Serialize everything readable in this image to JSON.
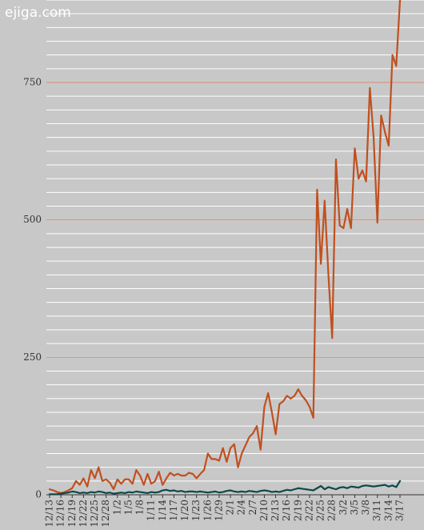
{
  "watermark": "ejiga.com",
  "chart_data": {
    "type": "line",
    "categories": [
      "12/13",
      null,
      null,
      "12/16",
      null,
      null,
      "12/19",
      null,
      null,
      "12/22",
      null,
      null,
      "12/25",
      null,
      null,
      "12/28",
      null,
      null,
      "1/2",
      null,
      null,
      "1/5",
      null,
      null,
      "1/8",
      null,
      null,
      "1/11",
      null,
      null,
      "1/14",
      null,
      null,
      "1/17",
      null,
      null,
      "1/20",
      null,
      null,
      "1/23",
      null,
      null,
      "1/26",
      null,
      null,
      "1/29",
      null,
      null,
      "2/1",
      null,
      null,
      "2/4",
      null,
      null,
      "2/7",
      null,
      null,
      "2/10",
      null,
      null,
      "2/13",
      null,
      null,
      "2/16",
      null,
      null,
      "2/19",
      null,
      null,
      "2/22",
      null,
      null,
      "2/25",
      null,
      null,
      "2/28",
      null,
      null,
      "3/2",
      null,
      null,
      "3/5",
      null,
      null,
      "3/8",
      null,
      null,
      "3/11",
      null,
      null,
      "3/14",
      null,
      null,
      "3/17"
    ],
    "series": [
      {
        "color": "#c0501f",
        "values": [
          10,
          8,
          5,
          3,
          5,
          8,
          12,
          25,
          18,
          30,
          15,
          45,
          30,
          50,
          25,
          28,
          22,
          10,
          28,
          20,
          28,
          28,
          20,
          45,
          35,
          18,
          38,
          20,
          25,
          42,
          18,
          30,
          40,
          35,
          38,
          35,
          35,
          40,
          38,
          30,
          38,
          45,
          75,
          65,
          65,
          62,
          85,
          60,
          85,
          92,
          50,
          75,
          90,
          105,
          112,
          125,
          82,
          160,
          185,
          150,
          110,
          165,
          170,
          180,
          175,
          180,
          192,
          180,
          172,
          160,
          140,
          555,
          420,
          535,
          400,
          285,
          610,
          490,
          485,
          520,
          485,
          630,
          575,
          590,
          570,
          740,
          650,
          495,
          690,
          660,
          635,
          800,
          780,
          900
        ]
      },
      {
        "color": "#0d4a4a",
        "values": [
          1,
          1,
          1,
          2,
          3,
          4,
          6,
          5,
          3,
          4,
          3,
          5,
          4,
          6,
          5,
          3,
          4,
          2,
          3,
          4,
          3,
          5,
          4,
          6,
          5,
          4,
          3,
          5,
          4,
          5,
          8,
          9,
          7,
          8,
          6,
          7,
          5,
          6,
          6,
          5,
          6,
          5,
          4,
          5,
          6,
          4,
          5,
          7,
          8,
          6,
          5,
          6,
          5,
          7,
          6,
          5,
          7,
          8,
          7,
          5,
          6,
          5,
          7,
          9,
          8,
          10,
          12,
          11,
          10,
          9,
          8,
          12,
          16,
          10,
          14,
          12,
          10,
          13,
          14,
          12,
          15,
          14,
          13,
          16,
          17,
          16,
          15,
          16,
          17,
          18,
          15,
          17,
          14,
          25
        ]
      }
    ],
    "ylim": [
      0,
      900
    ],
    "yticks": [
      0,
      250,
      500,
      750
    ],
    "grid": true,
    "minor_grid_step": 25
  }
}
